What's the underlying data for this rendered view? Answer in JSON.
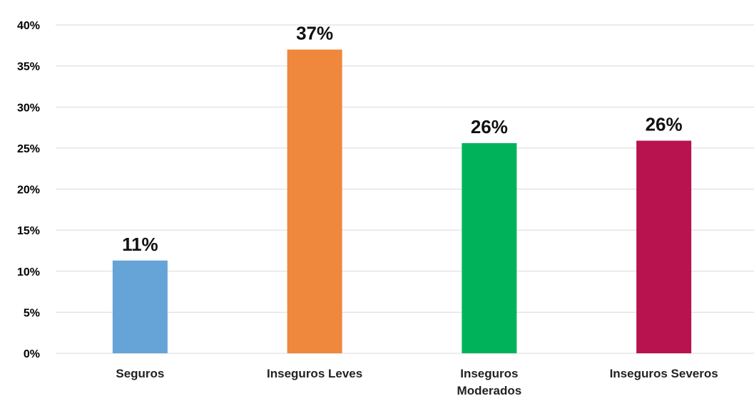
{
  "chart_data": {
    "type": "bar",
    "categories": [
      "Seguros",
      "Inseguros Leves",
      "Inseguros Moderados",
      "Inseguros Severos"
    ],
    "category_lines": [
      [
        "Seguros"
      ],
      [
        "Inseguros Leves"
      ],
      [
        "Inseguros",
        "Moderados"
      ],
      [
        "Inseguros Severos"
      ]
    ],
    "values": [
      11.3,
      37,
      25.6,
      25.9
    ],
    "data_labels": [
      "11%",
      "37%",
      "26%",
      "26%"
    ],
    "colors": [
      "#66a3d6",
      "#ef873c",
      "#00b35a",
      "#b8134f"
    ],
    "ylim": [
      0,
      40
    ],
    "yticks": [
      0,
      5,
      10,
      15,
      20,
      25,
      30,
      35,
      40
    ],
    "ytick_labels": [
      "0%",
      "5%",
      "10%",
      "15%",
      "20%",
      "25%",
      "30%",
      "35%",
      "40%"
    ],
    "grid": true,
    "title": "",
    "xlabel": "",
    "ylabel": ""
  }
}
